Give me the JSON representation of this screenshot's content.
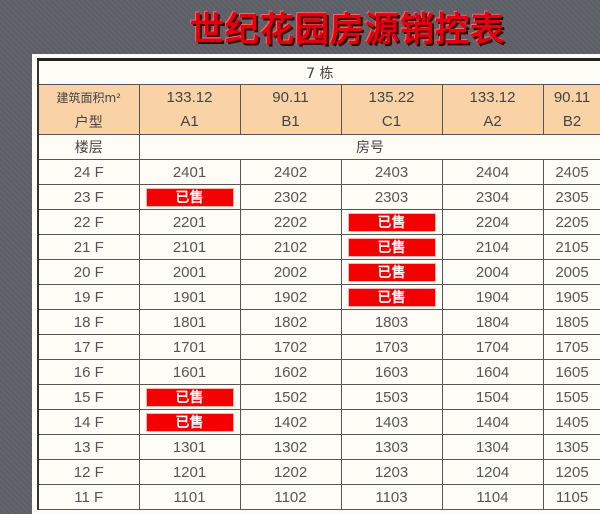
{
  "title": "世纪花园房源销控表",
  "building": "7 栋",
  "area_label": "建筑面积m²",
  "type_label": "户型",
  "floor_label": "楼层",
  "room_label": "房号",
  "sold_label": "已售",
  "colors": {
    "sold": "#f40000",
    "header": "#f9d3a6",
    "title": "#e3000f"
  },
  "units": [
    {
      "area": "133.12",
      "type": "A1"
    },
    {
      "area": "90.11",
      "type": "B1"
    },
    {
      "area": "135.22",
      "type": "C1"
    },
    {
      "area": "133.12",
      "type": "A2"
    },
    {
      "area": "90.11",
      "type": "B2"
    }
  ],
  "floors": [
    {
      "floor": "24 F",
      "rooms": [
        "2401",
        "2402",
        "2403",
        "2404",
        "2405"
      ],
      "sold": []
    },
    {
      "floor": "23 F",
      "rooms": [
        "2301",
        "2302",
        "2303",
        "2304",
        "2305"
      ],
      "sold": [
        0
      ]
    },
    {
      "floor": "22 F",
      "rooms": [
        "2201",
        "2202",
        "2203",
        "2204",
        "2205"
      ],
      "sold": [
        2
      ]
    },
    {
      "floor": "21 F",
      "rooms": [
        "2101",
        "2102",
        "2103",
        "2104",
        "2105"
      ],
      "sold": [
        2
      ]
    },
    {
      "floor": "20 F",
      "rooms": [
        "2001",
        "2002",
        "2003",
        "2004",
        "2005"
      ],
      "sold": [
        2
      ]
    },
    {
      "floor": "19 F",
      "rooms": [
        "1901",
        "1902",
        "1903",
        "1904",
        "1905"
      ],
      "sold": [
        2
      ]
    },
    {
      "floor": "18 F",
      "rooms": [
        "1801",
        "1802",
        "1803",
        "1804",
        "1805"
      ],
      "sold": []
    },
    {
      "floor": "17 F",
      "rooms": [
        "1701",
        "1702",
        "1703",
        "1704",
        "1705"
      ],
      "sold": []
    },
    {
      "floor": "16 F",
      "rooms": [
        "1601",
        "1602",
        "1603",
        "1604",
        "1605"
      ],
      "sold": []
    },
    {
      "floor": "15 F",
      "rooms": [
        "1501",
        "1502",
        "1503",
        "1504",
        "1505"
      ],
      "sold": [
        0
      ]
    },
    {
      "floor": "14 F",
      "rooms": [
        "1401",
        "1402",
        "1403",
        "1404",
        "1405"
      ],
      "sold": [
        0
      ]
    },
    {
      "floor": "13 F",
      "rooms": [
        "1301",
        "1302",
        "1303",
        "1304",
        "1305"
      ],
      "sold": []
    },
    {
      "floor": "12 F",
      "rooms": [
        "1201",
        "1202",
        "1203",
        "1204",
        "1205"
      ],
      "sold": []
    },
    {
      "floor": "11 F",
      "rooms": [
        "1101",
        "1102",
        "1103",
        "1104",
        "1105"
      ],
      "sold": []
    }
  ]
}
